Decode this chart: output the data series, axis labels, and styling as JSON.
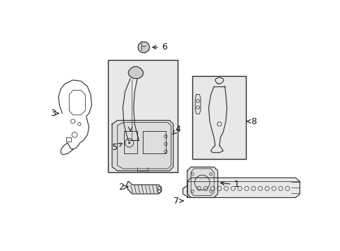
{
  "bg_color": "#ffffff",
  "line_color": "#2a2a2a",
  "fill_color": "#e8e8e8",
  "fig_width": 4.89,
  "fig_height": 3.6,
  "dpi": 100
}
